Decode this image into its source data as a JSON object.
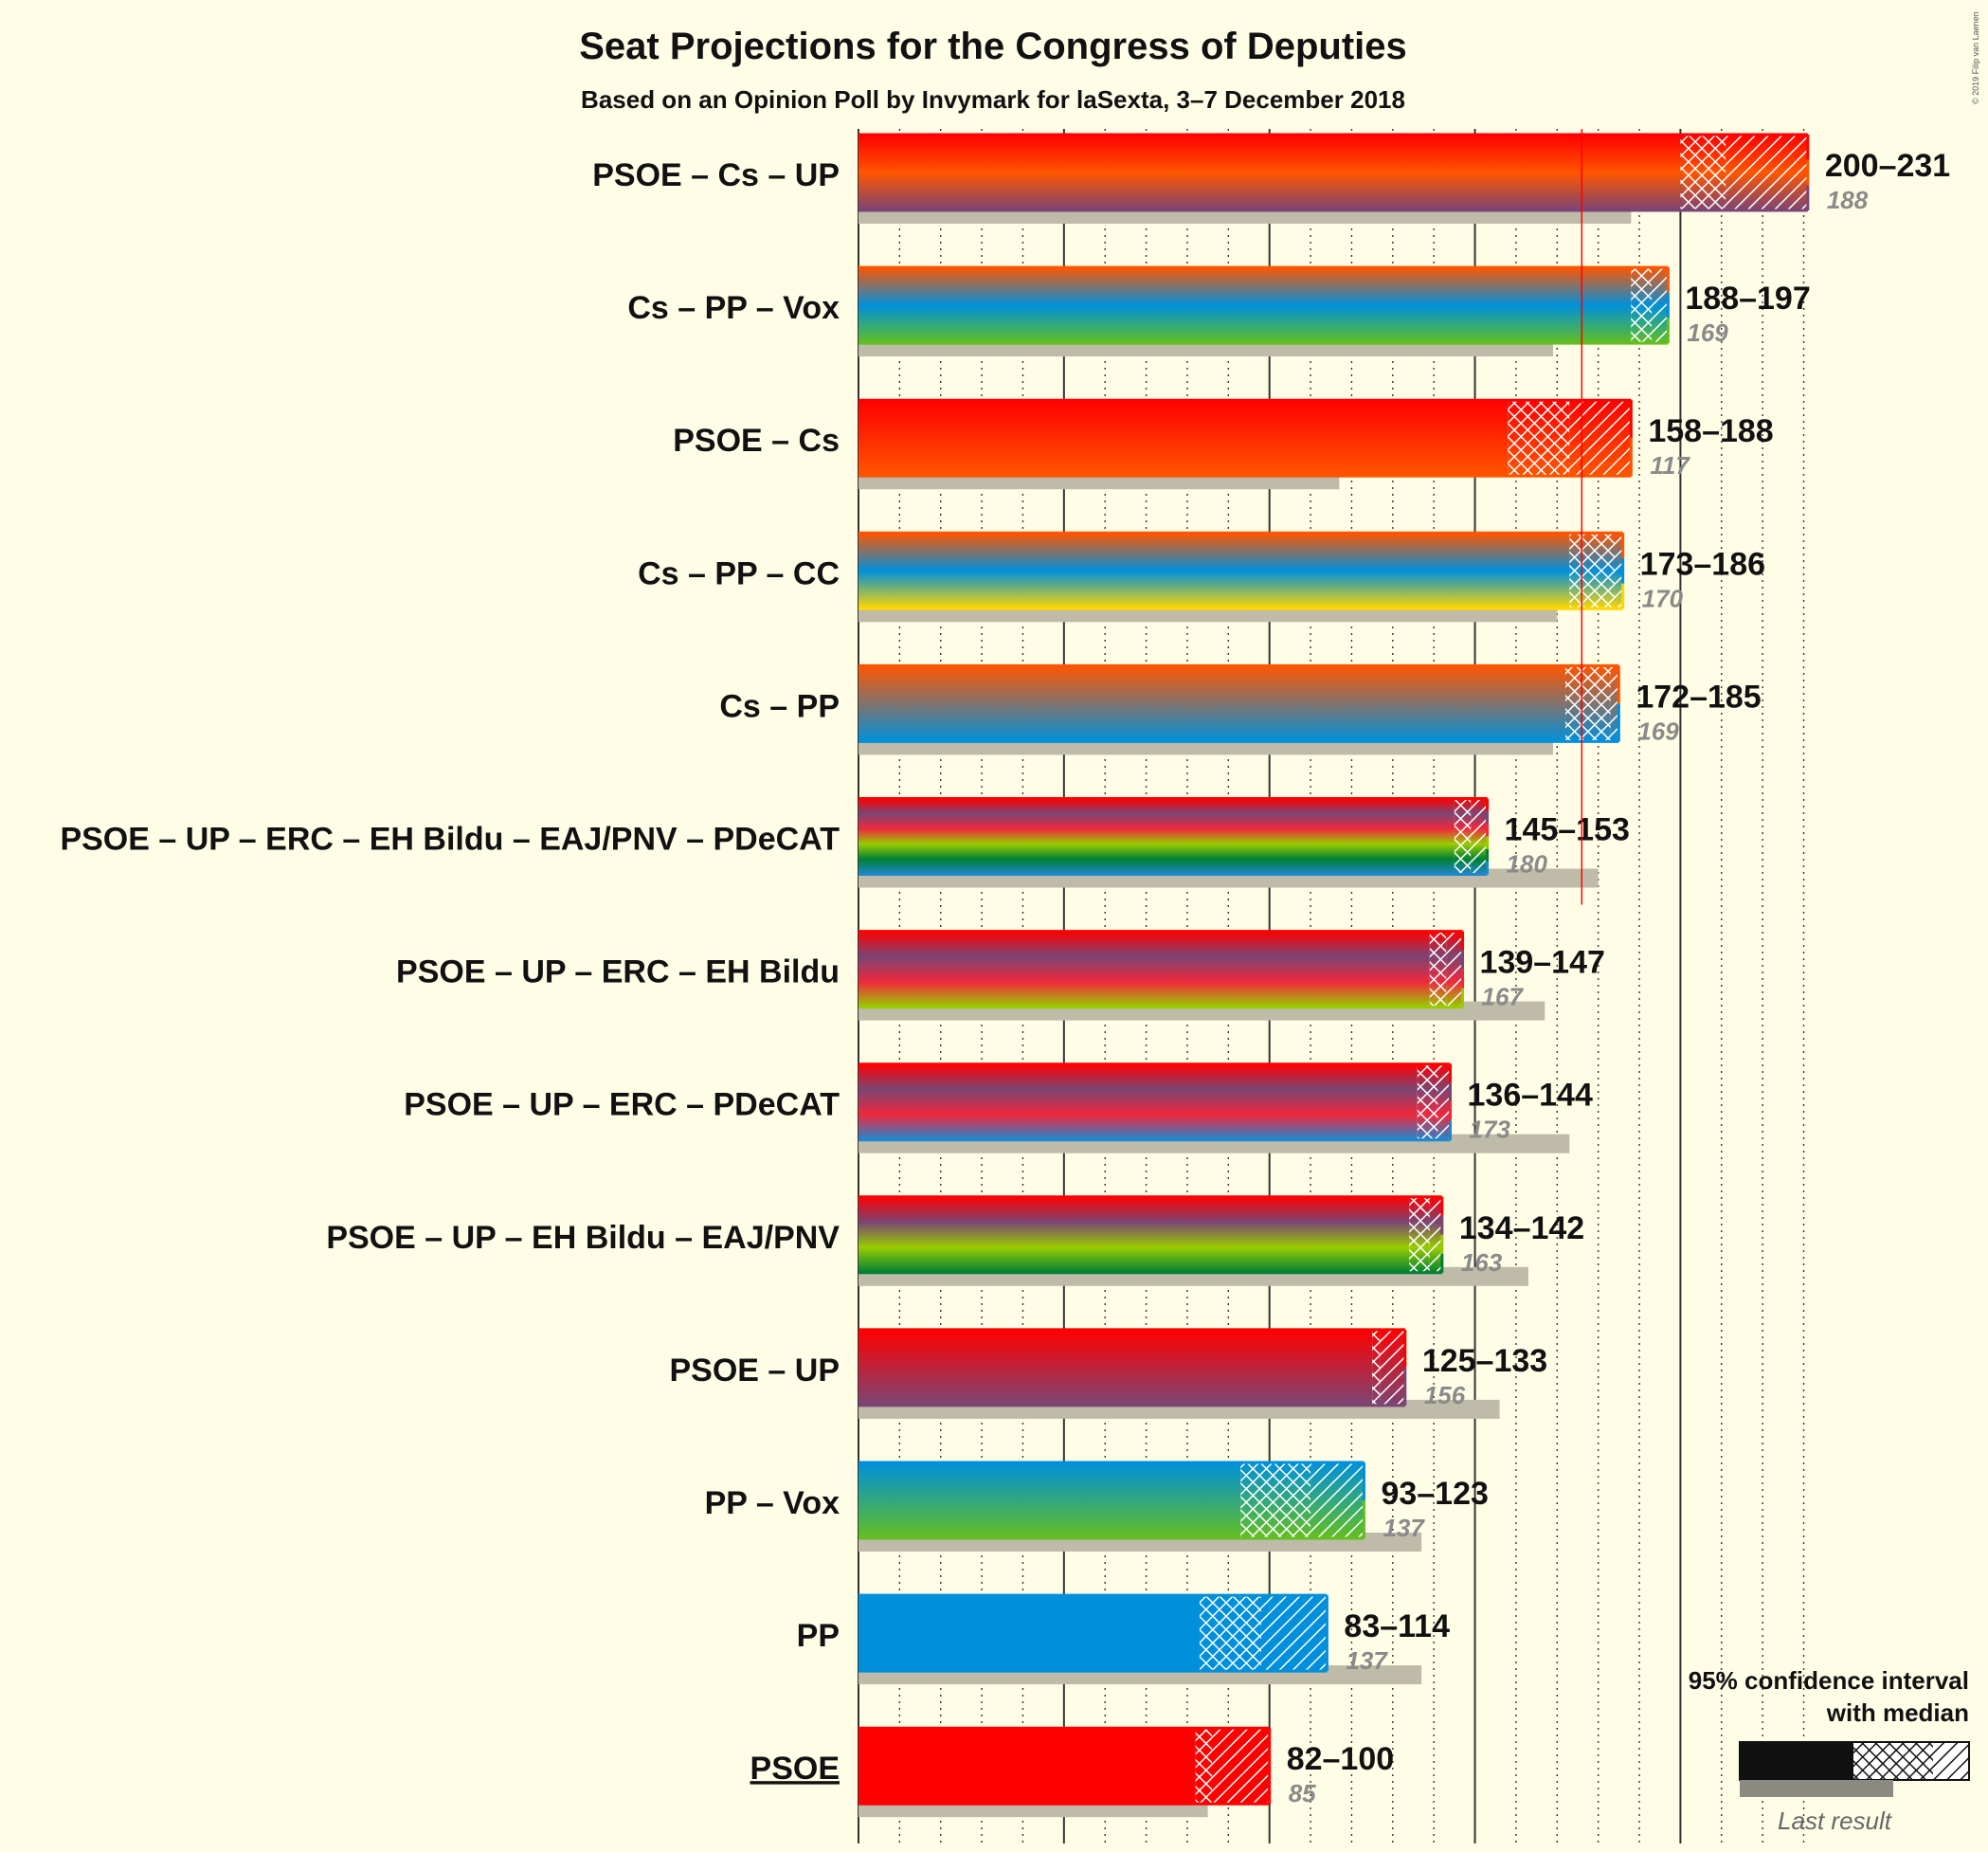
{
  "title": "Seat Projections for the Congress of Deputies",
  "subtitle": "Based on an Opinion Poll by Invymark for laSexta, 3–7 December 2018",
  "copyright": "© 2019 Filip van Laenen",
  "legend": {
    "line1": "95% confidence interval",
    "line2": "with median",
    "last_result": "Last result"
  },
  "colors": {
    "PSOE": "#FF0000",
    "Cs": "#FF5500",
    "UP": "#7B4574",
    "PP": "#0090DB",
    "Vox": "#63BE21",
    "CC": "#FFD700",
    "ERC": "#F0283C",
    "EH Bildu": "#99CC00",
    "EAJ/PNV": "#008033",
    "PDeCAT": "#1E87CF",
    "last_result_bar": "#BEBBA8",
    "majority_line": "#FF0000",
    "background": "#FFFDE6"
  },
  "chart_data": {
    "type": "bar",
    "orientation": "horizontal",
    "majority": 176,
    "x_range": [
      0,
      231
    ],
    "categories": [
      "PSOE – Cs – UP",
      "Cs – PP – Vox",
      "PSOE – Cs",
      "Cs – PP – CC",
      "Cs – PP",
      "PSOE – UP – ERC – EH Bildu – EAJ/PNV – PDeCAT",
      "PSOE – UP – ERC – EH Bildu",
      "PSOE – UP – ERC – PDeCAT",
      "PSOE – UP – EH Bildu – EAJ/PNV",
      "PSOE – UP",
      "PP – Vox",
      "PP",
      "PSOE"
    ],
    "series": [
      {
        "name": "95% confidence interval",
        "rows": [
          {
            "label": "PSOE – Cs – UP",
            "parties": [
              "PSOE",
              "Cs",
              "UP"
            ],
            "low": 200,
            "median": 211,
            "high": 231,
            "range_text": "200–231",
            "last": 188,
            "last_text": "188"
          },
          {
            "label": "Cs – PP – Vox",
            "parties": [
              "Cs",
              "PP",
              "Vox"
            ],
            "low": 188,
            "median": 193,
            "high": 197,
            "range_text": "188–197",
            "last": 169,
            "last_text": "169"
          },
          {
            "label": "PSOE – Cs",
            "parties": [
              "PSOE",
              "Cs"
            ],
            "low": 158,
            "median": 173,
            "high": 188,
            "range_text": "158–188",
            "last": 117,
            "last_text": "117"
          },
          {
            "label": "Cs – PP – CC",
            "parties": [
              "Cs",
              "PP",
              "CC"
            ],
            "low": 173,
            "median": 184,
            "high": 186,
            "range_text": "173–186",
            "last": 170,
            "last_text": "170"
          },
          {
            "label": "Cs – PP",
            "parties": [
              "Cs",
              "PP"
            ],
            "low": 172,
            "median": 183,
            "high": 185,
            "range_text": "172–185",
            "last": 169,
            "last_text": "169"
          },
          {
            "label": "PSOE – UP – ERC – EH Bildu – EAJ/PNV – PDeCAT",
            "parties": [
              "PSOE",
              "UP",
              "ERC",
              "EH Bildu",
              "EAJ/PNV",
              "PDeCAT"
            ],
            "low": 145,
            "median": 149,
            "high": 153,
            "range_text": "145–153",
            "last": 180,
            "last_text": "180"
          },
          {
            "label": "PSOE – UP – ERC – EH Bildu",
            "parties": [
              "PSOE",
              "UP",
              "ERC",
              "EH Bildu"
            ],
            "low": 139,
            "median": 143,
            "high": 147,
            "range_text": "139–147",
            "last": 167,
            "last_text": "167"
          },
          {
            "label": "PSOE – UP – ERC – PDeCAT",
            "parties": [
              "PSOE",
              "UP",
              "ERC",
              "PDeCAT"
            ],
            "low": 136,
            "median": 141,
            "high": 144,
            "range_text": "136–144",
            "last": 173,
            "last_text": "173"
          },
          {
            "label": "PSOE – UP – EH Bildu – EAJ/PNV",
            "parties": [
              "PSOE",
              "UP",
              "EH Bildu",
              "EAJ/PNV"
            ],
            "low": 134,
            "median": 139,
            "high": 142,
            "range_text": "134–142",
            "last": 163,
            "last_text": "163"
          },
          {
            "label": "PSOE – UP",
            "parties": [
              "PSOE",
              "UP"
            ],
            "low": 125,
            "median": 127,
            "high": 133,
            "range_text": "125–133",
            "last": 156,
            "last_text": "156"
          },
          {
            "label": "PP – Vox",
            "parties": [
              "PP",
              "Vox"
            ],
            "low": 93,
            "median": 110,
            "high": 123,
            "range_text": "93–123",
            "last": 137,
            "last_text": "137"
          },
          {
            "label": "PP",
            "parties": [
              "PP"
            ],
            "low": 83,
            "median": 98,
            "high": 114,
            "range_text": "83–114",
            "last": 137,
            "last_text": "137"
          },
          {
            "label": "PSOE",
            "parties": [
              "PSOE"
            ],
            "low": 82,
            "median": 86,
            "high": 100,
            "range_text": "82–100",
            "last": 85,
            "last_text": "85",
            "underline": true
          }
        ]
      }
    ]
  }
}
